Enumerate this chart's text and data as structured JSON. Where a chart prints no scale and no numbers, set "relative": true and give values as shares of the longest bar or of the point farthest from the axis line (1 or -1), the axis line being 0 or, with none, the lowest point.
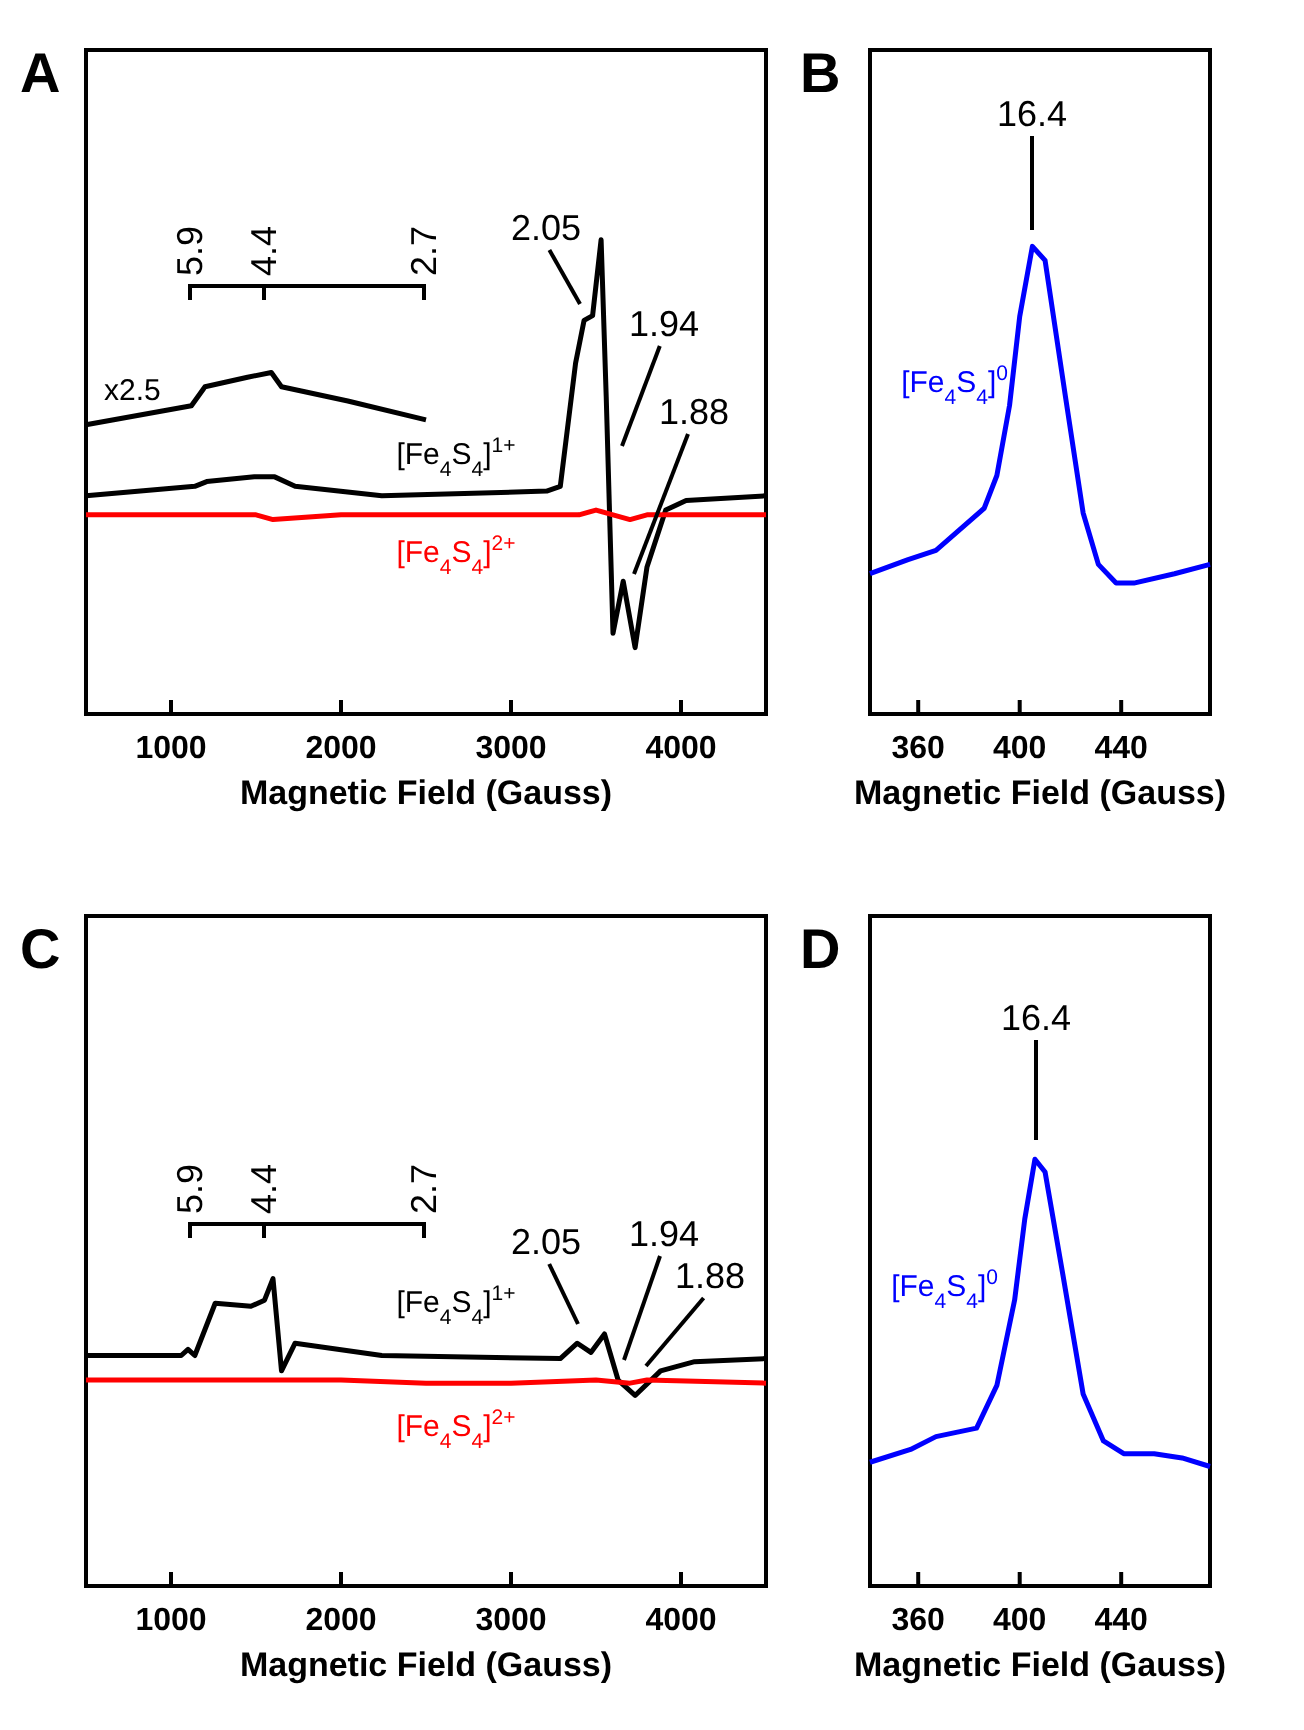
{
  "chart_data": [
    {
      "type": "line",
      "title": "A",
      "xlabel": "Magnetic Field (Gauss)",
      "relative": true,
      "xlim": [
        500,
        4500
      ],
      "xticks": [
        1000,
        2000,
        3000,
        4000
      ],
      "series": [
        {
          "name": "x2.5",
          "color": "#000000",
          "x": [
            500,
            1120,
            1200,
            1450,
            1590,
            1650,
            2040,
            2500
          ],
          "values": [
            0.61,
            0.65,
            0.69,
            0.71,
            0.72,
            0.69,
            0.66,
            0.62
          ]
        },
        {
          "name": "[Fe$_{4}$S$_{4}$]$^{1+}$",
          "color": "#000000",
          "x": [
            500,
            1140,
            1210,
            1490,
            1610,
            1730,
            2240,
            3210,
            3290,
            3380,
            3430,
            3480,
            3530,
            3560,
            3600,
            3660,
            3730,
            3800,
            3910,
            4030,
            4500
          ],
          "values": [
            0.46,
            0.48,
            0.49,
            0.5,
            0.5,
            0.48,
            0.46,
            0.47,
            0.48,
            0.74,
            0.83,
            0.84,
            1.0,
            0.67,
            0.17,
            0.28,
            0.14,
            0.31,
            0.43,
            0.45,
            0.46
          ]
        },
        {
          "name": "[Fe$_{4}$S$_{4}$]$^{2+}$",
          "color": "#ff0000",
          "x": [
            500,
            1000,
            1500,
            1600,
            2000,
            2500,
            3000,
            3400,
            3500,
            3600,
            3700,
            3800,
            4500
          ],
          "values": [
            0.42,
            0.42,
            0.42,
            0.41,
            0.42,
            0.42,
            0.42,
            0.42,
            0.43,
            0.42,
            0.41,
            0.42,
            0.42
          ]
        }
      ],
      "annotations": [
        "5.9",
        "4.4",
        "2.7",
        "2.05",
        "1.94",
        "1.88"
      ]
    },
    {
      "type": "line",
      "title": "B",
      "xlabel": "Magnetic Field (Gauss)",
      "relative": true,
      "xlim": [
        341,
        475
      ],
      "xticks": [
        360,
        400,
        440
      ],
      "series": [
        {
          "name": "[Fe$_{4}$S$_{4}$]$^{0}$",
          "color": "#0000ff",
          "x": [
            341,
            356,
            367,
            386,
            391,
            396,
            400,
            405,
            410,
            418,
            425,
            431,
            438,
            445,
            461,
            475
          ],
          "values": [
            0.3,
            0.33,
            0.35,
            0.44,
            0.51,
            0.66,
            0.85,
            1.0,
            0.97,
            0.68,
            0.43,
            0.32,
            0.28,
            0.28,
            0.3,
            0.32
          ]
        }
      ],
      "annotations": [
        "16.4"
      ]
    },
    {
      "type": "line",
      "title": "C",
      "xlabel": "Magnetic Field (Gauss)",
      "relative": true,
      "xlim": [
        500,
        4500
      ],
      "xticks": [
        1000,
        2000,
        3000,
        4000
      ],
      "series": [
        {
          "name": "[Fe$_{4}$S$_{4}$]$^{1+}$",
          "color": "#000000",
          "x": [
            500,
            1060,
            1100,
            1140,
            1260,
            1470,
            1550,
            1600,
            1650,
            1730,
            2240,
            3290,
            3390,
            3470,
            3550,
            3630,
            3730,
            3880,
            4080,
            4500
          ],
          "values": [
            0.75,
            0.75,
            0.77,
            0.75,
            0.92,
            0.91,
            0.93,
            1.0,
            0.7,
            0.79,
            0.75,
            0.74,
            0.79,
            0.76,
            0.82,
            0.67,
            0.62,
            0.7,
            0.73,
            0.74
          ]
        },
        {
          "name": "[Fe$_{4}$S$_{4}$]$^{2+}$",
          "color": "#ff0000",
          "x": [
            500,
            1000,
            1500,
            2000,
            2500,
            3000,
            3500,
            3700,
            3800,
            4500
          ],
          "values": [
            0.67,
            0.67,
            0.67,
            0.67,
            0.66,
            0.66,
            0.67,
            0.66,
            0.67,
            0.66
          ]
        }
      ],
      "annotations": [
        "5.9",
        "4.4",
        "2.7",
        "2.05",
        "1.94",
        "1.88"
      ]
    },
    {
      "type": "line",
      "title": "D",
      "xlabel": "Magnetic Field (Gauss)",
      "relative": true,
      "xlim": [
        341,
        475
      ],
      "xticks": [
        360,
        400,
        440
      ],
      "series": [
        {
          "name": "[Fe$_{4}$S$_{4}$]$^{0}$",
          "color": "#0000ff",
          "x": [
            341,
            357,
            367,
            375,
            383,
            391,
            398,
            402,
            406,
            410,
            417,
            425,
            433,
            441,
            453,
            464,
            475
          ],
          "values": [
            0.29,
            0.32,
            0.35,
            0.36,
            0.37,
            0.47,
            0.67,
            0.86,
            1.0,
            0.97,
            0.73,
            0.45,
            0.34,
            0.31,
            0.31,
            0.3,
            0.28
          ]
        }
      ],
      "annotations": [
        "16.4"
      ]
    }
  ]
}
